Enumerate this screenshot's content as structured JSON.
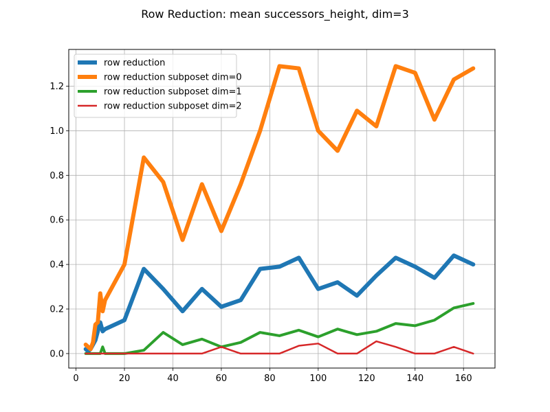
{
  "chart_data": {
    "type": "line",
    "title": "Row Reduction: mean successors_height, dim=3",
    "xlabel": "",
    "ylabel": "",
    "xlim": [
      -3.0,
      173.0
    ],
    "ylim": [
      -0.065,
      1.365
    ],
    "xticks": [
      0,
      20,
      40,
      60,
      80,
      100,
      120,
      140,
      160
    ],
    "yticks": [
      0.0,
      0.2,
      0.4,
      0.6,
      0.8,
      1.0,
      1.2
    ],
    "grid": true,
    "legend_position": "top-left",
    "series": [
      {
        "name": "row reduction",
        "color": "#1f77b4",
        "width": 6,
        "x": [
          4,
          5,
          6,
          7,
          8,
          9,
          10,
          11,
          12,
          20,
          28,
          36,
          44,
          52,
          60,
          68,
          76,
          84,
          92,
          100,
          108,
          116,
          124,
          132,
          140,
          148,
          156,
          164
        ],
        "y": [
          0.02,
          0.01,
          0.02,
          0.04,
          0.06,
          0.1,
          0.14,
          0.1,
          0.11,
          0.15,
          0.38,
          0.29,
          0.19,
          0.29,
          0.21,
          0.24,
          0.38,
          0.39,
          0.43,
          0.29,
          0.32,
          0.26,
          0.35,
          0.43,
          0.39,
          0.34,
          0.44,
          0.4
        ]
      },
      {
        "name": "row reduction subposet dim=0",
        "color": "#ff7f0e",
        "width": 6,
        "x": [
          4,
          5,
          6,
          7,
          8,
          9,
          10,
          11,
          12,
          20,
          28,
          36,
          44,
          52,
          60,
          68,
          76,
          84,
          92,
          100,
          108,
          116,
          124,
          132,
          140,
          148,
          156,
          164
        ],
        "y": [
          0.04,
          0.03,
          0.02,
          0.05,
          0.13,
          0.14,
          0.27,
          0.19,
          0.24,
          0.4,
          0.88,
          0.77,
          0.51,
          0.76,
          0.55,
          0.76,
          1.0,
          1.29,
          1.28,
          1.0,
          0.91,
          1.09,
          1.02,
          1.29,
          1.26,
          1.05,
          1.23,
          1.28
        ]
      },
      {
        "name": "row reduction subposet dim=1",
        "color": "#2ca02c",
        "width": 4,
        "x": [
          4,
          8,
          10,
          11,
          12,
          20,
          28,
          36,
          44,
          52,
          60,
          68,
          76,
          84,
          92,
          100,
          108,
          116,
          124,
          132,
          140,
          148,
          156,
          164
        ],
        "y": [
          0.0,
          0.0,
          0.0,
          0.03,
          0.0,
          0.0,
          0.015,
          0.095,
          0.04,
          0.065,
          0.03,
          0.05,
          0.095,
          0.08,
          0.105,
          0.075,
          0.11,
          0.085,
          0.1,
          0.135,
          0.125,
          0.15,
          0.205,
          0.225
        ]
      },
      {
        "name": "row reduction subposet dim=2",
        "color": "#d62728",
        "width": 2.5,
        "x": [
          4,
          12,
          20,
          28,
          36,
          44,
          52,
          60,
          68,
          76,
          84,
          92,
          100,
          108,
          116,
          124,
          132,
          140,
          148,
          156,
          164
        ],
        "y": [
          0.0,
          0.0,
          0.0,
          0.0,
          0.0,
          0.0,
          0.0,
          0.03,
          0.0,
          0.0,
          0.0,
          0.035,
          0.045,
          0.0,
          0.0,
          0.055,
          0.03,
          0.0,
          0.0,
          0.03,
          0.0
        ]
      }
    ]
  }
}
